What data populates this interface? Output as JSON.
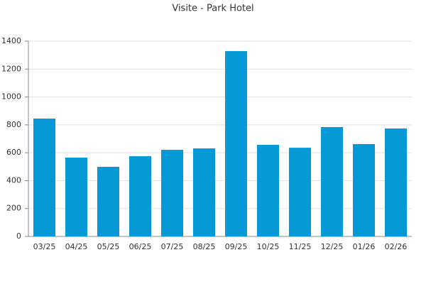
{
  "chart_data": {
    "type": "bar",
    "title": "Visite - Park Hotel",
    "categories": [
      "03/25",
      "04/25",
      "05/25",
      "06/25",
      "07/25",
      "08/25",
      "09/25",
      "10/25",
      "11/25",
      "12/25",
      "01/26",
      "02/26"
    ],
    "values": [
      845,
      565,
      499,
      575,
      621,
      631,
      1329,
      657,
      636,
      784,
      662,
      774
    ],
    "color": "#0799d6",
    "ylim": [
      0,
      1400
    ],
    "yticks": [
      0,
      200,
      400,
      600,
      800,
      1000,
      1200,
      1400
    ],
    "grid": true
  }
}
